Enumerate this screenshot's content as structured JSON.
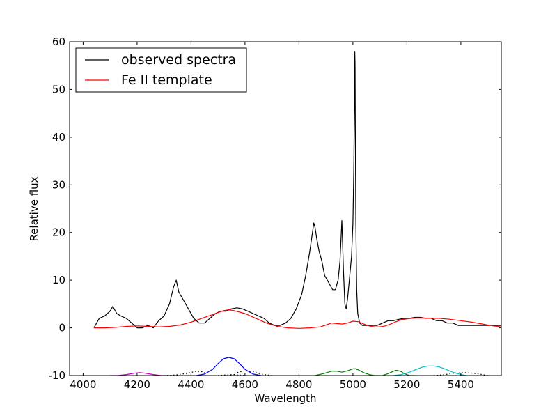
{
  "chart_data": {
    "type": "line",
    "title": "",
    "xlabel": "Wavelength",
    "ylabel": "Relative flux",
    "xlim": [
      3950,
      5550
    ],
    "ylim": [
      -10,
      60
    ],
    "xticks": [
      4000,
      4200,
      4400,
      4600,
      4800,
      5000,
      5200,
      5400
    ],
    "yticks": [
      -10,
      0,
      10,
      20,
      30,
      40,
      50,
      60
    ],
    "grid": false,
    "legend": {
      "position": "top-left",
      "entries": [
        {
          "label": "observed spectra",
          "color": "#000000"
        },
        {
          "label": "Fe II template",
          "color": "#ff0000"
        }
      ]
    },
    "series": [
      {
        "name": "observed spectra",
        "color": "#000000",
        "x": [
          4040,
          4060,
          4080,
          4100,
          4110,
          4125,
          4140,
          4160,
          4180,
          4200,
          4220,
          4240,
          4260,
          4280,
          4300,
          4320,
          4335,
          4345,
          4355,
          4370,
          4390,
          4410,
          4430,
          4450,
          4470,
          4490,
          4510,
          4530,
          4550,
          4570,
          4590,
          4610,
          4630,
          4650,
          4670,
          4690,
          4710,
          4730,
          4750,
          4770,
          4790,
          4810,
          4825,
          4840,
          4850,
          4855,
          4860,
          4865,
          4875,
          4885,
          4895,
          4905,
          4915,
          4925,
          4935,
          4945,
          4952,
          4957,
          4959,
          4961,
          4965,
          4970,
          4975,
          4980,
          4985,
          4990,
          4995,
          5000,
          5003,
          5006,
          5007,
          5008,
          5009,
          5011,
          5014,
          5018,
          5025,
          5035,
          5050,
          5070,
          5090,
          5110,
          5130,
          5150,
          5170,
          5190,
          5210,
          5230,
          5250,
          5270,
          5290,
          5310,
          5330,
          5350,
          5370,
          5390,
          5410,
          5430,
          5450,
          5470,
          5490,
          5510,
          5530,
          5550
        ],
        "y": [
          0,
          2,
          2.5,
          3.5,
          4.5,
          3,
          2.5,
          2,
          1,
          0,
          0,
          0.5,
          0,
          1.5,
          2.5,
          5,
          8.5,
          10,
          7.5,
          6,
          4,
          2,
          1,
          1,
          2,
          3,
          3.5,
          3.5,
          4,
          4.2,
          4,
          3.5,
          3,
          2.5,
          2,
          1,
          0.5,
          0.5,
          1,
          2,
          4,
          7,
          11,
          16,
          20,
          22,
          21,
          19,
          16,
          14,
          11,
          10,
          9,
          8,
          8,
          10,
          14,
          20,
          22.5,
          19,
          12,
          5,
          4,
          6,
          9,
          12,
          15,
          22,
          32,
          48,
          58,
          55,
          40,
          22,
          8,
          3,
          1,
          0.5,
          0.5,
          0.5,
          0.5,
          1,
          1.5,
          1.5,
          1.8,
          2,
          2,
          2.2,
          2.2,
          2,
          2,
          1.5,
          1.5,
          1,
          1,
          0.5,
          0.5,
          0.5,
          0.5,
          0.5,
          0.5,
          0.5,
          0.5,
          0.5
        ]
      },
      {
        "name": "Fe II template",
        "color": "#ff0000",
        "x": [
          4040,
          4080,
          4120,
          4160,
          4200,
          4240,
          4280,
          4320,
          4360,
          4400,
          4440,
          4480,
          4520,
          4540,
          4560,
          4600,
          4640,
          4680,
          4720,
          4760,
          4800,
          4840,
          4880,
          4900,
          4920,
          4940,
          4960,
          4980,
          5000,
          5020,
          5040,
          5060,
          5080,
          5100,
          5120,
          5140,
          5160,
          5180,
          5200,
          5240,
          5280,
          5320,
          5360,
          5400,
          5440,
          5480,
          5520,
          5550
        ],
        "y": [
          0,
          0,
          0.1,
          0.3,
          0.4,
          0.3,
          0.2,
          0.3,
          0.6,
          1.2,
          2,
          2.8,
          3.6,
          3.8,
          3.6,
          3,
          2,
          1,
          0.3,
          0,
          -0.1,
          0,
          0.2,
          0.6,
          1,
          0.9,
          0.8,
          1,
          1.4,
          1.3,
          0.8,
          0.4,
          0.2,
          0.2,
          0.4,
          0.8,
          1.3,
          1.7,
          1.9,
          2.1,
          2,
          2,
          1.8,
          1.5,
          1.2,
          0.8,
          0.4,
          0.2
        ]
      },
      {
        "name": "",
        "color": "#bf00bf",
        "style": "solid",
        "x": [
          4100,
          4130,
          4160,
          4190,
          4210,
          4230,
          4260,
          4290,
          4320
        ],
        "y": [
          -10,
          -10,
          -9.8,
          -9.5,
          -9.4,
          -9.5,
          -9.8,
          -10,
          -10
        ]
      },
      {
        "name": "",
        "color": "#0000ff",
        "style": "solid",
        "x": [
          4420,
          4450,
          4480,
          4500,
          4520,
          4540,
          4560,
          4580,
          4600,
          4630,
          4660
        ],
        "y": [
          -10,
          -9.7,
          -8.7,
          -7.5,
          -6.5,
          -6.2,
          -6.5,
          -7.5,
          -8.7,
          -9.7,
          -10
        ]
      },
      {
        "name": "",
        "color": "#007f00",
        "style": "solid",
        "x": [
          4860,
          4890,
          4920,
          4940,
          4960,
          4980,
          5000,
          5010,
          5020,
          5040,
          5060,
          5080,
          5100
        ],
        "y": [
          -10,
          -9.6,
          -9.1,
          -9.1,
          -9.3,
          -9,
          -8.6,
          -8.6,
          -8.8,
          -9.4,
          -9.8,
          -10,
          -10
        ]
      },
      {
        "name": "",
        "color": "#007f00",
        "style": "solid",
        "x": [
          5110,
          5130,
          5150,
          5160,
          5170,
          5180,
          5190,
          5210,
          5230
        ],
        "y": [
          -10,
          -9.6,
          -9.1,
          -8.9,
          -9,
          -9.2,
          -9.6,
          -10,
          -10
        ]
      },
      {
        "name": "",
        "color": "#00bfbf",
        "style": "solid",
        "x": [
          5150,
          5180,
          5210,
          5240,
          5260,
          5280,
          5300,
          5320,
          5340,
          5370,
          5400,
          5420
        ],
        "y": [
          -10,
          -9.8,
          -9.3,
          -8.6,
          -8.2,
          -8,
          -8,
          -8.2,
          -8.6,
          -9.3,
          -9.8,
          -10
        ]
      },
      {
        "name": "",
        "color": "#000000",
        "style": "dotted",
        "x": [
          4300,
          4340,
          4380,
          4420,
          4440,
          4460
        ],
        "y": [
          -10,
          -9.9,
          -9.6,
          -9.1,
          -9.2,
          -9.6
        ]
      },
      {
        "name": "",
        "color": "#000000",
        "style": "dotted",
        "x": [
          4560,
          4600,
          4630,
          4660,
          4700
        ],
        "y": [
          -9.5,
          -9,
          -9.2,
          -9.7,
          -10
        ]
      },
      {
        "name": "",
        "color": "#000000",
        "style": "dotted",
        "x": [
          4500,
          4520,
          4560,
          4600
        ],
        "y": [
          -10,
          -9.9,
          -9.8,
          -10
        ]
      },
      {
        "name": "",
        "color": "#000000",
        "style": "dotted",
        "x": [
          5300,
          5340,
          5380,
          5420,
          5460,
          5500
        ],
        "y": [
          -10,
          -9.8,
          -9.5,
          -9.4,
          -9.6,
          -10
        ]
      }
    ]
  }
}
